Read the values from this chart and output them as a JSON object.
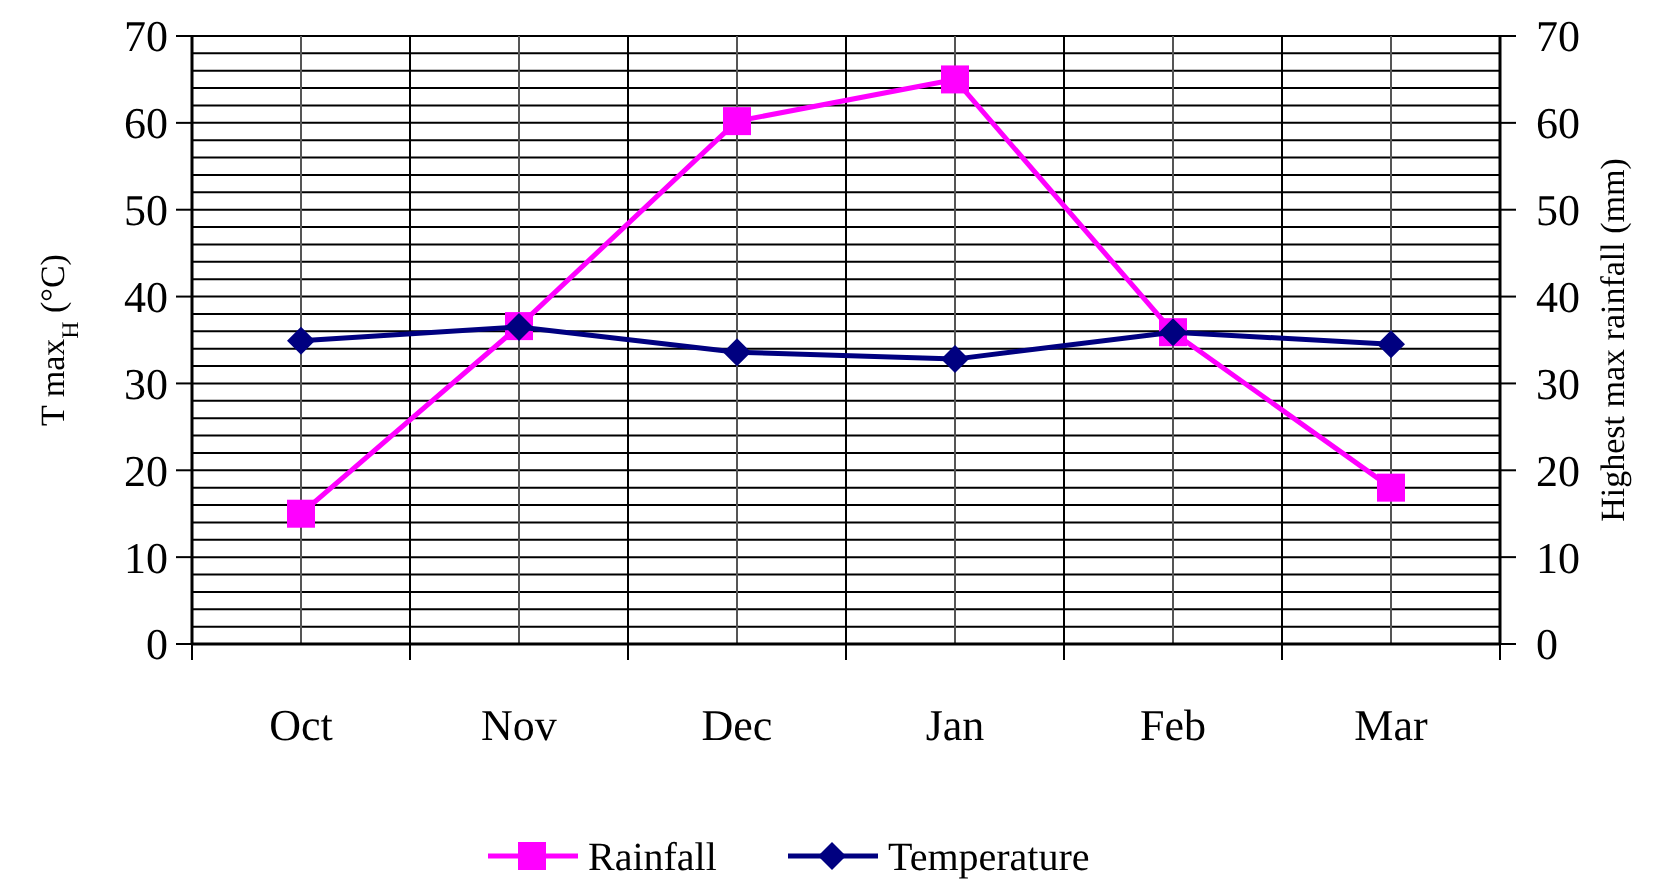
{
  "chart_data": {
    "type": "line",
    "categories": [
      "Oct",
      "Nov",
      "Dec",
      "Jan",
      "Feb",
      "Mar"
    ],
    "series": [
      {
        "name": "Rainfall",
        "color": "#ff00ff",
        "marker": "square",
        "axis": "y2",
        "values": [
          15,
          36.6,
          60.2,
          65,
          35.9,
          18
        ]
      },
      {
        "name": "Temperature",
        "color": "#000080",
        "marker": "diamond",
        "values": [
          34.9,
          36.5,
          33.6,
          32.8,
          35.9,
          34.5
        ]
      }
    ],
    "ylabel": "T max$_{H}$ (°C)",
    "y2label": "Highest max rainfall (mm)",
    "ylim": [
      0,
      70
    ],
    "yticks": [
      0,
      10,
      20,
      30,
      40,
      50,
      60,
      70
    ],
    "y2lim": [
      0,
      70
    ],
    "y2ticks": [
      0,
      10,
      20,
      30,
      40,
      50,
      60,
      70
    ],
    "grid": true,
    "legend": "bottom"
  }
}
